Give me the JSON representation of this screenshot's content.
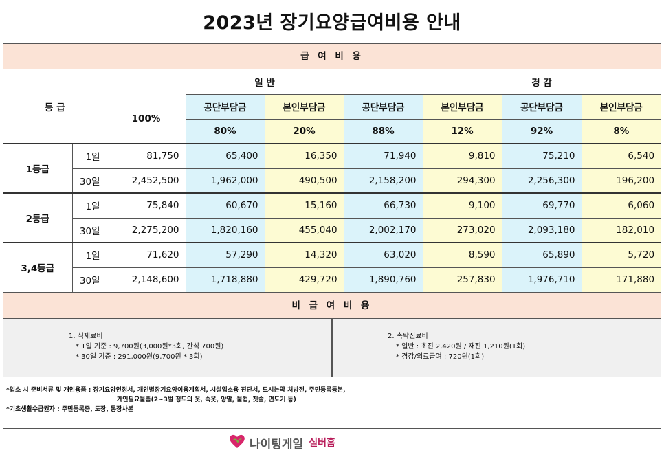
{
  "title": "2023년 장기요양급여비용 안내",
  "section_pay": "급 여 비 용",
  "header": {
    "grade": "등   급",
    "general": "일   반",
    "reduced": "경   감",
    "total_pct": "100%",
    "public": "공단부담금",
    "self": "본인부담금",
    "pcts": [
      "80%",
      "20%",
      "88%",
      "12%",
      "92%",
      "8%"
    ]
  },
  "rows": [
    {
      "grade": "1등급",
      "period": "1일",
      "values": [
        "81,750",
        "65,400",
        "16,350",
        "71,940",
        "9,810",
        "75,210",
        "6,540"
      ]
    },
    {
      "grade": "",
      "period": "30일",
      "values": [
        "2,452,500",
        "1,962,000",
        "490,500",
        "2,158,200",
        "294,300",
        "2,256,300",
        "196,200"
      ]
    },
    {
      "grade": "2등급",
      "period": "1일",
      "values": [
        "75,840",
        "60,670",
        "15,160",
        "66,730",
        "9,100",
        "69,770",
        "6,060"
      ]
    },
    {
      "grade": "",
      "period": "30일",
      "values": [
        "2,275,200",
        "1,820,160",
        "455,040",
        "2,002,170",
        "273,020",
        "2,093,180",
        "182,010"
      ]
    },
    {
      "grade": "3,4등급",
      "period": "1일",
      "values": [
        "71,620",
        "57,290",
        "14,320",
        "63,020",
        "8,590",
        "65,890",
        "5,720"
      ]
    },
    {
      "grade": "",
      "period": "30일",
      "values": [
        "2,148,600",
        "1,718,880",
        "429,720",
        "1,890,760",
        "257,830",
        "1,976,710",
        "171,880"
      ]
    }
  ],
  "section_nonpay": "비 급 여 비 용",
  "meal": {
    "heading": "1. 식재료비",
    "lines": [
      "* 1일 기준 : 9,700원(3,000원*3회, 간식 700원)",
      "* 30일 기준 : 291,000원(9,700원 * 3회)"
    ]
  },
  "doctor": {
    "heading": "2. 촉탁진료비",
    "lines": [
      "* 일반 : 초진 2,420원 / 재진 1,210원(1회)",
      "* 경감/의료급여 : 720원(1회)"
    ]
  },
  "notes": [
    "*입소 시 준비서류 및 개인용품 : 장기요양인정서, 개인별장기요양이용계획서, 시설입소용 진단서, 드시는약 처방전, 주민등록등본,",
    "개인필요물품(2~3벌 정도의 옷, 속옷, 양말, 물컵, 칫솔, 면도기 등)",
    "*기초생활수급권자 : 주민등록증, 도장, 통장사본"
  ],
  "logo": {
    "name": "나이팅게일",
    "sub": "실버홈",
    "icon": "heart-logo-icon"
  },
  "colors": {
    "header_band": "#fbe3d6",
    "public_cell": "#dbf3fa",
    "self_cell": "#fdfbd3",
    "logo_heart": "#d8266b"
  }
}
